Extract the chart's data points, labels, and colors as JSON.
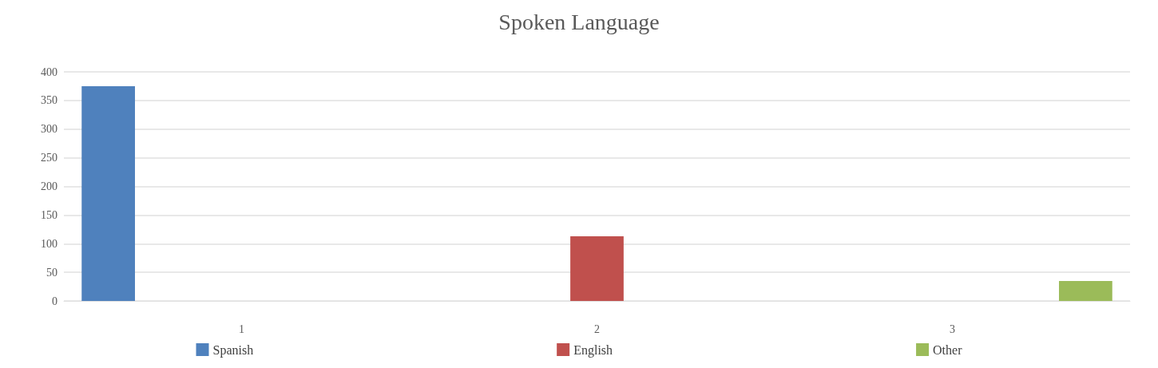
{
  "chart_data": {
    "type": "bar",
    "title": "Spoken Language",
    "categories": [
      "1",
      "2",
      "3"
    ],
    "series": [
      {
        "name": "Spanish",
        "color": "#4f81bd",
        "values": [
          375,
          null,
          null
        ]
      },
      {
        "name": "English",
        "color": "#c0504d",
        "values": [
          null,
          113,
          null
        ]
      },
      {
        "name": "Other",
        "color": "#9bbb59",
        "values": [
          null,
          null,
          35
        ]
      }
    ],
    "ylim": [
      0,
      400
    ],
    "yticks": [
      0,
      50,
      100,
      150,
      200,
      250,
      300,
      350,
      400
    ],
    "grid": "y",
    "legend": "bottom"
  }
}
